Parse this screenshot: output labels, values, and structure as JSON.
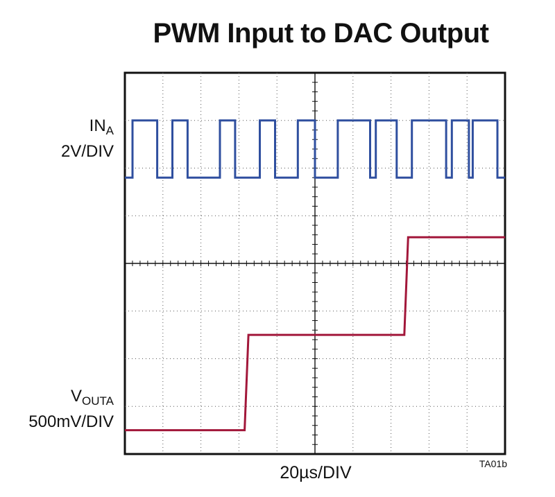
{
  "chart_data": {
    "type": "line",
    "title": "PWM Input to DAC Output",
    "grid": true,
    "xlabel": "20µs/DIV",
    "x_divisions": 10,
    "y_divisions": 8,
    "figure_code": "TA01b",
    "series": [
      {
        "name": "IN_A",
        "color": "#2f4f9f",
        "scale": "2V/DIV",
        "display": "PWM square wave between about 7.0 and 5.8 divisions, period about 1.43 divisions",
        "x": [
          0,
          0.2,
          0.2,
          0.85,
          0.85,
          1.25,
          1.25,
          1.65,
          1.65,
          2.5,
          2.5,
          2.9,
          2.9,
          3.55,
          3.55,
          3.95,
          3.95,
          4.55,
          4.55,
          5.0,
          5.0,
          5.6,
          5.6,
          6.45,
          6.45,
          6.6,
          6.6,
          7.15,
          7.15,
          7.55,
          7.55,
          8.45,
          8.45,
          8.6,
          8.6,
          9.05,
          9.05,
          9.15,
          9.15,
          9.8,
          9.8,
          10
        ],
        "y": [
          5.8,
          5.8,
          7.0,
          7.0,
          5.8,
          5.8,
          7.0,
          7.0,
          5.8,
          5.8,
          7.0,
          7.0,
          5.8,
          5.8,
          7.0,
          7.0,
          5.8,
          5.8,
          7.0,
          7.0,
          5.8,
          5.8,
          7.0,
          7.0,
          5.8,
          5.8,
          7.0,
          7.0,
          5.8,
          5.8,
          7.0,
          7.0,
          5.8,
          5.8,
          7.0,
          7.0,
          5.8,
          5.8,
          7.0,
          7.0,
          5.8,
          5.8
        ]
      },
      {
        "name": "V_OUTA",
        "color": "#a2173a",
        "scale": "500mV/DIV",
        "display": "staircase steps of about 2 divisions",
        "x": [
          0,
          3.15,
          3.25,
          7.35,
          7.45,
          10
        ],
        "y": [
          0.5,
          0.5,
          2.5,
          2.5,
          4.55,
          4.55
        ]
      }
    ],
    "annotations": [
      {
        "text": "IN",
        "sub": "A",
        "scale": "2V/DIV"
      },
      {
        "text": "V",
        "sub": "OUTA",
        "scale": "500mV/DIV"
      }
    ]
  }
}
